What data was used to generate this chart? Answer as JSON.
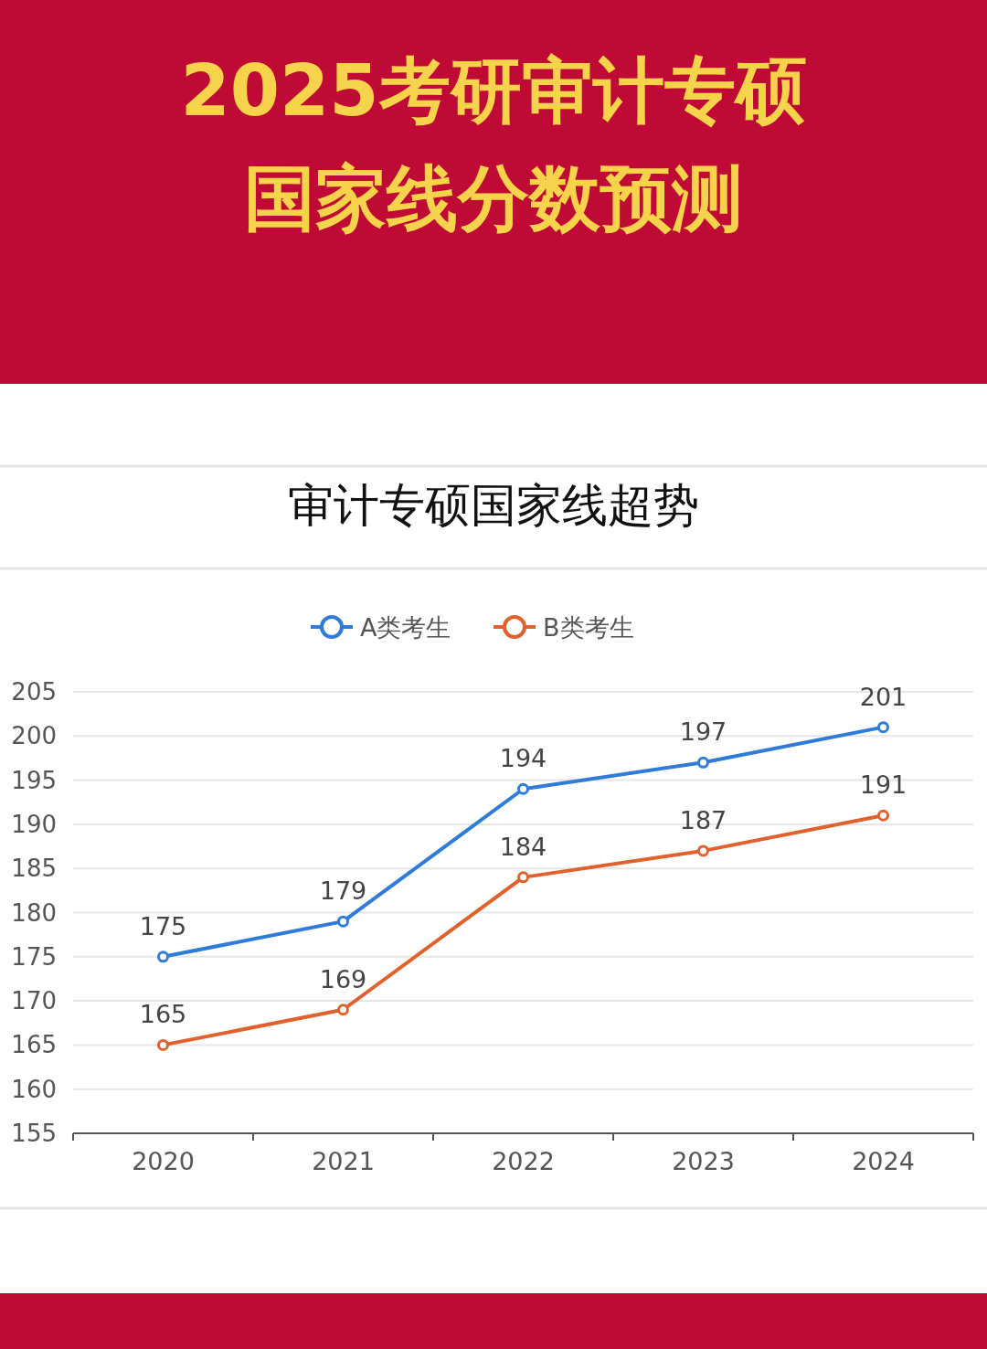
{
  "chart_data": {
    "type": "line",
    "title": "2025考研审计专硕国家线分数预测",
    "subtitle": "审计专硕国家线超势",
    "categories": [
      "2020",
      "2021",
      "2022",
      "2023",
      "2024"
    ],
    "series": [
      {
        "name": "A类考生",
        "color": "#2f7bd8",
        "values": [
          175,
          179,
          194,
          197,
          201
        ]
      },
      {
        "name": "B类考生",
        "color": "#e0612b",
        "values": [
          165,
          169,
          184,
          187,
          191
        ]
      }
    ],
    "ylim": [
      155,
      205
    ],
    "yticks": [
      155,
      160,
      165,
      170,
      175,
      180,
      185,
      190,
      195,
      200,
      205
    ],
    "grid": "y",
    "legend": "top",
    "marker": "circle",
    "line_style": "solid",
    "data_labels": true
  }
}
